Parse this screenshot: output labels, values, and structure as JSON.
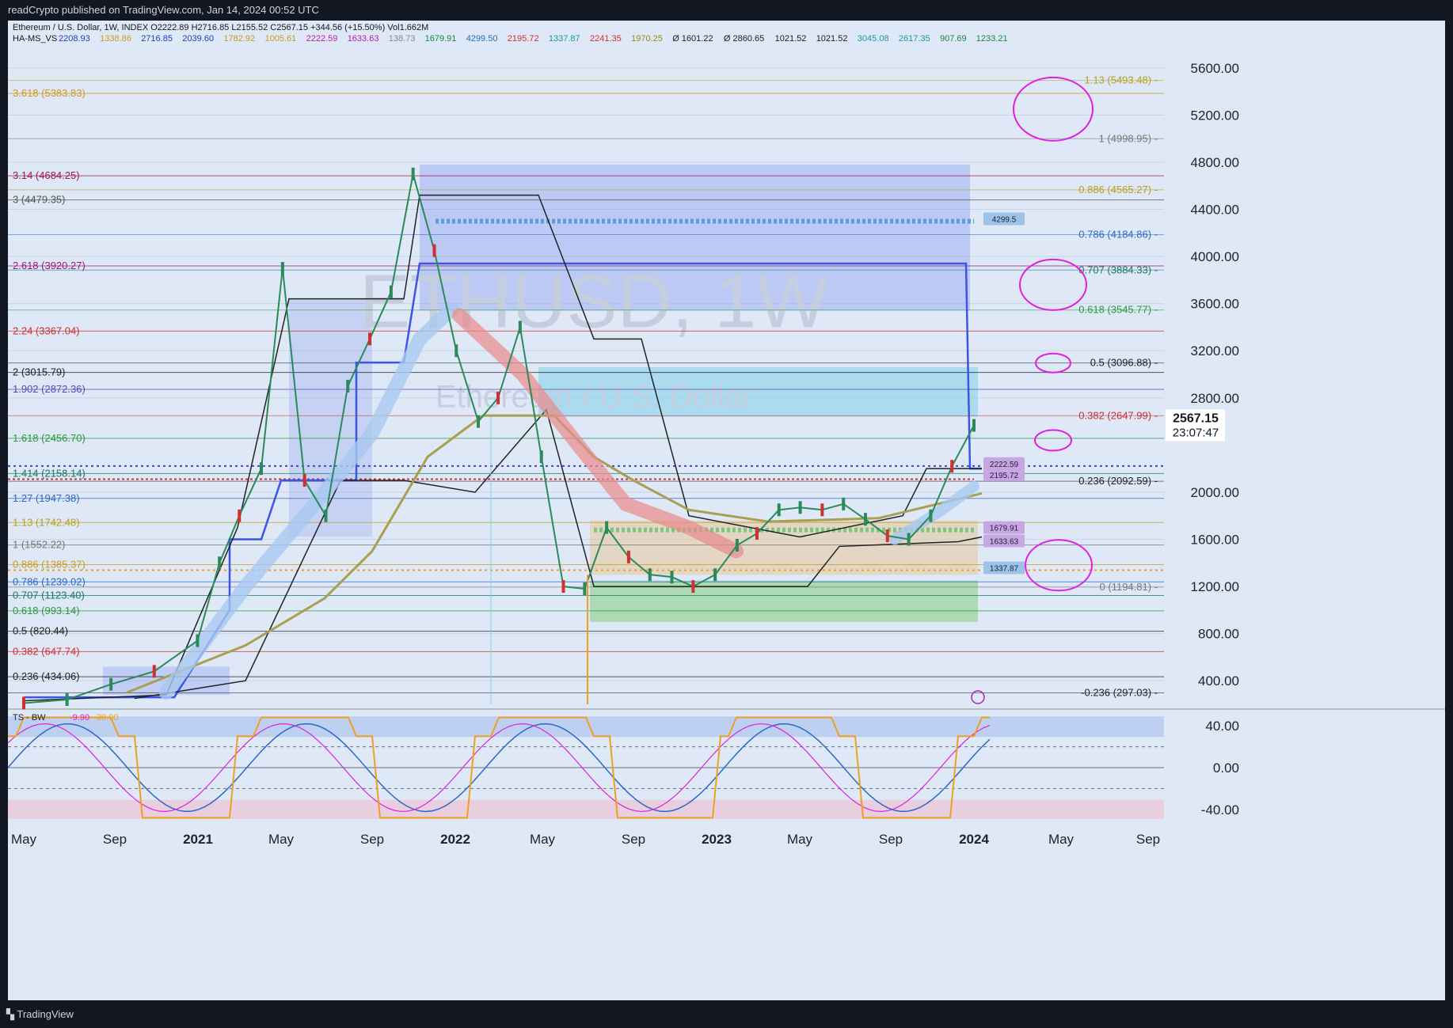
{
  "header": {
    "publisher": "readCrypto published on TradingView.com, Jan 14, 2024 00:52 UTC"
  },
  "footer": {
    "brand": "TradingView"
  },
  "legend": {
    "line1": "Ethereum / U.S. Dollar, 1W, INDEX  O2222.89  H2716.85  L2155.52  C2567.15  +344.56 (+15.50%)  Vol1.662M",
    "line2_name": "HA-MS_VS",
    "line2_values": [
      {
        "v": "2208.93",
        "c": "#1e3fb8"
      },
      {
        "v": "1338.86",
        "c": "#c89d1c"
      },
      {
        "v": "2716.85",
        "c": "#1e3fb8"
      },
      {
        "v": "2039.60",
        "c": "#1e3fb8"
      },
      {
        "v": "1782.92",
        "c": "#c89d1c"
      },
      {
        "v": "1005.61",
        "c": "#c89d1c"
      },
      {
        "v": "2222.59",
        "c": "#b51fb5"
      },
      {
        "v": "1633.63",
        "c": "#b51fb5"
      },
      {
        "v": "138.73",
        "c": "#888888"
      },
      {
        "v": "1679.91",
        "c": "#1a8a3a"
      },
      {
        "v": "4299.50",
        "c": "#1e6fb8"
      },
      {
        "v": "2195.72",
        "c": "#d03030"
      },
      {
        "v": "1337.87",
        "c": "#1a9aa0"
      },
      {
        "v": "2241.35",
        "c": "#d03030"
      },
      {
        "v": "1970.25",
        "c": "#9a8a10"
      },
      {
        "v": "Ø 1601.22",
        "c": "#222222"
      },
      {
        "v": "Ø 2860.65",
        "c": "#222222"
      },
      {
        "v": "1021.52",
        "c": "#222222"
      },
      {
        "v": "1021.52",
        "c": "#222222"
      },
      {
        "v": "3045.08",
        "c": "#1a9aa0"
      },
      {
        "v": "2617.35",
        "c": "#1a9aa0"
      },
      {
        "v": "907.69",
        "c": "#1a8a3a"
      },
      {
        "v": "1233.21",
        "c": "#1a8a3a"
      }
    ],
    "oscillator": {
      "name": "TS - BW",
      "v1": "-9.90",
      "v2": "30.00"
    }
  },
  "watermark": {
    "symbol": "ETHUSD, 1W",
    "name": "Ethereum / U.S. Dollar"
  },
  "price_label": {
    "price": "2567.15",
    "countdown": "23:07:47"
  },
  "chart_data": {
    "type": "line",
    "title": "Ethereum / U.S. Dollar, 1W, INDEX",
    "price_axis": {
      "ticks": [
        "5600.00",
        "5200.00",
        "4800.00",
        "4400.00",
        "4000.00",
        "3600.00",
        "3200.00",
        "2800.00",
        "2000.00",
        "1600.00",
        "1200.00",
        "800.00",
        "400.00"
      ],
      "ylim": [
        200,
        5800
      ]
    },
    "time_axis": {
      "ticks": [
        "May",
        "Sep",
        "2021",
        "May",
        "Sep",
        "2022",
        "May",
        "Sep",
        "2023",
        "May",
        "Sep",
        "2024",
        "May",
        "Sep"
      ]
    },
    "osc_axis": {
      "ticks": [
        "40.00",
        "0.00",
        "-40.00"
      ],
      "ylim": [
        -50,
        50
      ]
    },
    "fib_left": [
      {
        "label": "3.618 (5383.83)",
        "value": 5383.83,
        "color": "#d19a1a"
      },
      {
        "label": "3.14 (4684.25)",
        "value": 4684.25,
        "color": "#9c1a4a"
      },
      {
        "label": "3 (4479.35)",
        "value": 4479.35,
        "color": "#555555"
      },
      {
        "label": "2.618 (3920.27)",
        "value": 3920.27,
        "color": "#9c1a7a"
      },
      {
        "label": "2.24 (3367.04)",
        "value": 3367.04,
        "color": "#d03030"
      },
      {
        "label": "2 (3015.79)",
        "value": 3015.79,
        "color": "#222222"
      },
      {
        "label": "1.902 (2872.36)",
        "value": 2872.36,
        "color": "#5a4ab8"
      },
      {
        "label": "1.618 (2456.70)",
        "value": 2456.7,
        "color": "#2a9a3a"
      },
      {
        "label": "1.414 (2158.14)",
        "value": 2158.14,
        "color": "#1a7a6a"
      },
      {
        "label": "1.27 (1947.38)",
        "value": 1947.38,
        "color": "#2a6ac8"
      },
      {
        "label": "1.13 (1742.48)",
        "value": 1742.48,
        "color": "#b8a01a"
      },
      {
        "label": "1 (1552.22)",
        "value": 1552.22,
        "color": "#777777"
      },
      {
        "label": "0.886 (1385.37)",
        "value": 1385.37,
        "color": "#c89d1c"
      },
      {
        "label": "0.786 (1239.02)",
        "value": 1239.02,
        "color": "#2a6ac8"
      },
      {
        "label": "0.707 (1123.40)",
        "value": 1123.4,
        "color": "#1a7a6a"
      },
      {
        "label": "0.618 (993.14)",
        "value": 993.14,
        "color": "#2a9a3a"
      },
      {
        "label": "0.5 (820.44)",
        "value": 820.44,
        "color": "#222222"
      },
      {
        "label": "0.382 (647.74)",
        "value": 647.74,
        "color": "#d03030"
      },
      {
        "label": "0.236 (434.06)",
        "value": 434.06,
        "color": "#222222"
      }
    ],
    "fib_right": [
      {
        "label": "1.13 (5493.48)",
        "value": 5493.48,
        "color": "#b8a01a"
      },
      {
        "label": "1 (4998.95)",
        "value": 4998.95,
        "color": "#777777"
      },
      {
        "label": "0.886 (4565.27)",
        "value": 4565.27,
        "color": "#b8a01a"
      },
      {
        "label": "0.786 (4184.86)",
        "value": 4184.86,
        "color": "#2a6ac8"
      },
      {
        "label": "0.707 (3884.33)",
        "value": 3884.33,
        "color": "#1a7a6a"
      },
      {
        "label": "0.618 (3545.77)",
        "value": 3545.77,
        "color": "#2a9a3a"
      },
      {
        "label": "0.5 (3096.88)",
        "value": 3096.88,
        "color": "#222222"
      },
      {
        "label": "0.382 (2647.99)",
        "value": 2647.99,
        "color": "#d03030"
      },
      {
        "label": "0.236 (2092.59)",
        "value": 2092.59,
        "color": "#222222"
      },
      {
        "label": "0 (1194.81)",
        "value": 1194.81,
        "color": "#777777"
      },
      {
        "label": "-0.236 (297.03)",
        "value": 297.03,
        "color": "#222222"
      }
    ],
    "markers": [
      {
        "label": "4299.5",
        "value": 4299.5,
        "color": "#9ec3e8"
      },
      {
        "label": "2222.59",
        "value": 2222.59,
        "color": "#c7a6e3"
      },
      {
        "label": "2195.72",
        "value": 2195.72,
        "color": "#c7a6e3"
      },
      {
        "label": "1679.91",
        "value": 1679.91,
        "color": "#c7a6e3"
      },
      {
        "label": "1633.63",
        "value": 1633.63,
        "color": "#c7a6e3"
      },
      {
        "label": "1337.87",
        "value": 1337.87,
        "color": "#9ec3e8"
      }
    ],
    "price_series": {
      "name": "ETHUSD",
      "x": [
        "2020-05",
        "2020-07",
        "2020-09",
        "2020-11",
        "2021-01",
        "2021-02",
        "2021-03",
        "2021-04",
        "2021-05",
        "2021-06",
        "2021-07",
        "2021-08",
        "2021-09",
        "2021-10",
        "2021-11",
        "2021-12",
        "2022-01",
        "2022-02",
        "2022-03",
        "2022-04",
        "2022-05",
        "2022-06",
        "2022-07",
        "2022-08",
        "2022-09",
        "2022-10",
        "2022-11",
        "2022-12",
        "2023-01",
        "2023-02",
        "2023-03",
        "2023-04",
        "2023-05",
        "2023-06",
        "2023-07",
        "2023-08",
        "2023-09",
        "2023-10",
        "2023-11",
        "2023-12",
        "2024-01"
      ],
      "y": [
        210,
        240,
        370,
        480,
        740,
        1400,
        1800,
        2200,
        3900,
        2100,
        1800,
        2900,
        3300,
        3700,
        4700,
        4050,
        3200,
        2600,
        2800,
        3400,
        2300,
        1200,
        1180,
        1700,
        1450,
        1300,
        1280,
        1200,
        1300,
        1550,
        1650,
        1850,
        1870,
        1850,
        1900,
        1770,
        1630,
        1600,
        1800,
        2220,
        2567
      ]
    }
  }
}
